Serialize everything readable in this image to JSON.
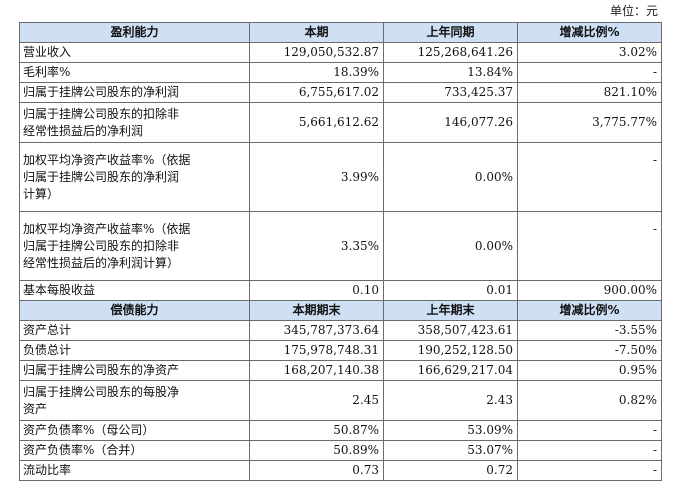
{
  "unit_label": "单位：元",
  "profitability": {
    "headers": [
      "盈利能力",
      "本期",
      "上年同期",
      "增减比例%"
    ],
    "rows": [
      {
        "label": [
          "营业收入"
        ],
        "current": "129,050,532.87",
        "prior": "125,268,641.26",
        "change": "3.02%"
      },
      {
        "label": [
          "毛利率%"
        ],
        "current": "18.39%",
        "prior": "13.84%",
        "change": "-"
      },
      {
        "label": [
          "归属于挂牌公司股东的净利润"
        ],
        "current": "6,755,617.02",
        "prior": "733,425.37",
        "change": "821.10%"
      },
      {
        "label": [
          "归属于挂牌公司股东的扣除非",
          "经常性损益后的净利润"
        ],
        "current": "5,661,612.62",
        "prior": "146,077.26",
        "change": "3,775.77%"
      },
      {
        "label": [
          "加权平均净资产收益率%（依据",
          "归属于挂牌公司股东的净利润",
          "计算）"
        ],
        "current": "3.99%",
        "prior": "0.00%",
        "change": "-"
      },
      {
        "label": [
          "加权平均净资产收益率%（依据",
          "归属于挂牌公司股东的扣除非",
          "经常性损益后的净利润计算）"
        ],
        "current": "3.35%",
        "prior": "0.00%",
        "change": "-"
      },
      {
        "label": [
          "基本每股收益"
        ],
        "current": "0.10",
        "prior": "0.01",
        "change": "900.00%"
      }
    ]
  },
  "solvency": {
    "headers": [
      "偿债能力",
      "本期期末",
      "上年期末",
      "增减比例%"
    ],
    "rows": [
      {
        "label": [
          "资产总计"
        ],
        "current": "345,787,373.64",
        "prior": "358,507,423.61",
        "change": "-3.55%"
      },
      {
        "label": [
          "负债总计"
        ],
        "current": "175,978,748.31",
        "prior": "190,252,128.50",
        "change": "-7.50%"
      },
      {
        "label": [
          "归属于挂牌公司股东的净资产"
        ],
        "current": "168,207,140.38",
        "prior": "166,629,217.04",
        "change": "0.95%"
      },
      {
        "label": [
          "归属于挂牌公司股东的每股净",
          "资产"
        ],
        "current": "2.45",
        "prior": "2.43",
        "change": "0.82%"
      },
      {
        "label": [
          "资产负债率%（母公司）"
        ],
        "current": "50.87%",
        "prior": "53.09%",
        "change": "-"
      },
      {
        "label": [
          "资产负债率%（合并）"
        ],
        "current": "50.89%",
        "prior": "53.07%",
        "change": "-"
      },
      {
        "label": [
          "流动比率"
        ],
        "current": "0.73",
        "prior": "0.72",
        "change": "-"
      }
    ]
  }
}
